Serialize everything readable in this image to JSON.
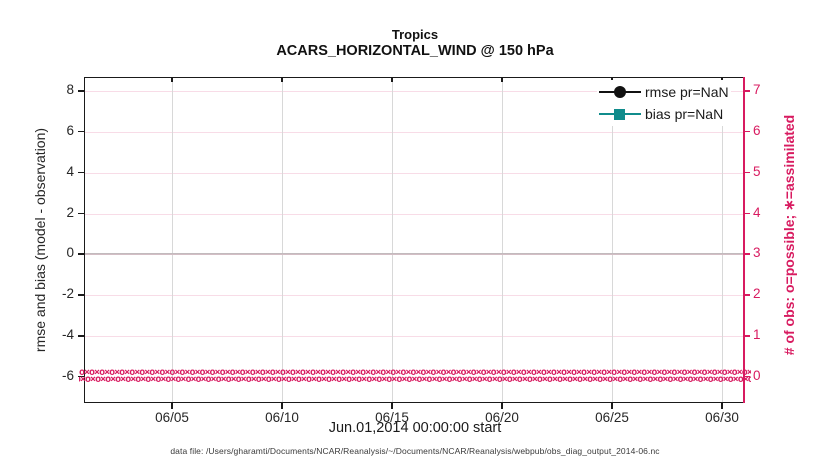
{
  "title": {
    "line1": "Tropics",
    "line2": "ACARS_HORIZONTAL_WIND @ 150 hPa"
  },
  "axes": {
    "left": {
      "label": "rmse and bias (model - observation)",
      "ticks": [
        "8",
        "6",
        "4",
        "2",
        "0",
        "-2",
        "-4",
        "-6"
      ]
    },
    "right": {
      "label": "# of obs: o=possible; ∗=assimilated",
      "ticks": [
        "7",
        "6",
        "5",
        "4",
        "3",
        "2",
        "1",
        "0"
      ]
    },
    "x": {
      "label": "Jun.01,2014 00:00:00 start",
      "ticks": [
        "06/05",
        "06/10",
        "06/15",
        "06/20",
        "06/25",
        "06/30"
      ]
    }
  },
  "legend": {
    "entries": [
      {
        "label": "rmse pr=NaN",
        "marker": "circle",
        "color": "#111111"
      },
      {
        "label": "bias pr=NaN",
        "marker": "square",
        "color": "#108C8C"
      }
    ]
  },
  "footer": "data file: /Users/gharamti/Documents/NCAR/Reanalysis/~/Documents/NCAR/Reanalysis/webpub/obs_diag_output_2014-06.nc",
  "band": {
    "glyphs": "o×",
    "repeat": 72
  },
  "colors": {
    "pink": "#D81B60",
    "teal": "#108C8C",
    "black": "#1a1a1a",
    "grid_pink": "#f8dce7",
    "grid_gray": "#d8d8d8",
    "zero_gray": "#b9b9b9",
    "zero_pink": "#dcc0c9"
  },
  "chart_data": {
    "type": "line",
    "title": "Tropics",
    "subtitle": "ACARS_HORIZONTAL_WIND @ 150 hPa",
    "x_axis": {
      "label": "Jun.01,2014 00:00:00 start",
      "tick_labels": [
        "06/05",
        "06/10",
        "06/15",
        "06/20",
        "06/25",
        "06/30"
      ],
      "range": [
        "2014-06-01 00:00",
        "2014-07-01 00:00"
      ],
      "grid": true
    },
    "y_left": {
      "label": "rmse and bias (model - observation)",
      "ticks": [
        8,
        6,
        4,
        2,
        0,
        -2,
        -4,
        -6
      ],
      "range": [
        -6.65,
        8.7
      ],
      "color": "#1a1a1a"
    },
    "y_right": {
      "label": "# of obs: o=possible; ∗=assimilated",
      "ticks": [
        7,
        6,
        5,
        4,
        3,
        2,
        1,
        0
      ],
      "range": [
        -0.33,
        7.35
      ],
      "color": "#D81B60"
    },
    "series": [
      {
        "name": "rmse pr=NaN",
        "axis": "left",
        "marker": "filled-circle",
        "color": "#111111",
        "values": null,
        "note": "all values NaN — no rmse curve plotted"
      },
      {
        "name": "bias pr=NaN",
        "axis": "left",
        "marker": "filled-square",
        "color": "#108C8C",
        "values": null,
        "note": "all values NaN — no bias curve plotted"
      },
      {
        "name": "# of obs possible (o)",
        "axis": "right",
        "marker": "o",
        "color": "#D81B60",
        "note": "value 0 at every time bin from Jun 01 to Jul 01 2014 (dense marker band along right-axis 0)"
      },
      {
        "name": "# of obs assimilated (∗)",
        "axis": "right",
        "marker": "∗",
        "color": "#D81B60",
        "note": "value 0 at every time bin from Jun 01 to Jul 01 2014 (dense marker band along right-axis 0)"
      }
    ],
    "annotations": {
      "zero_line_left_axis": 0
    },
    "grid": "on",
    "legend_position": "top-right inside plot"
  }
}
